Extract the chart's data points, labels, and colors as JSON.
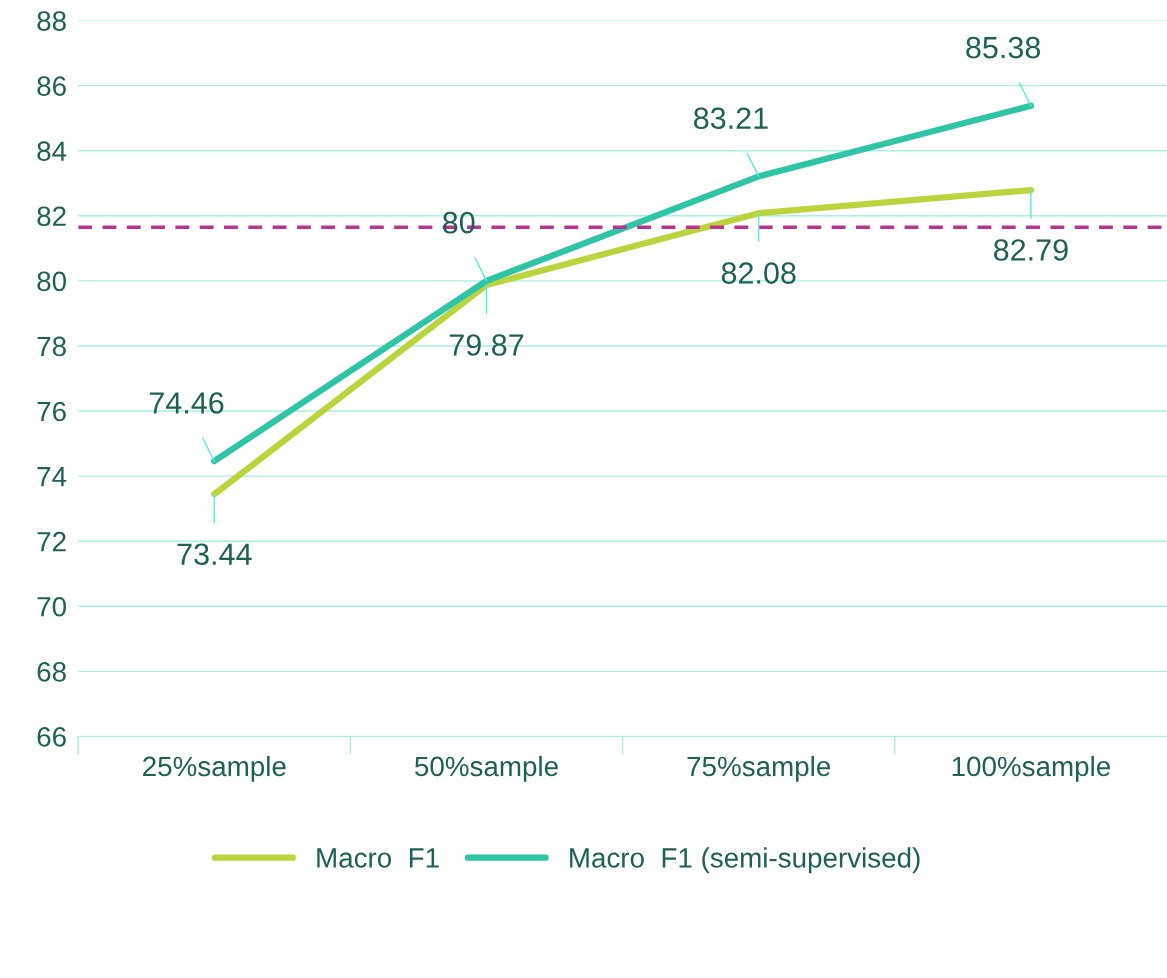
{
  "chart_data": {
    "type": "line",
    "categories": [
      "25%sample",
      "50%sample",
      "75%sample",
      "100%sample"
    ],
    "series": [
      {
        "name": "Macro  F1",
        "color": "#bcd43c",
        "values": [
          73.44,
          79.87,
          82.08,
          82.79
        ]
      },
      {
        "name": "Macro  F1 (semi-supervised)",
        "color": "#2ec4a6",
        "values": [
          74.46,
          80,
          83.21,
          85.38
        ]
      }
    ],
    "ref_lines": [
      {
        "axis": "y",
        "value": 81.65,
        "color": "#b8348f",
        "line_style": "dashed"
      }
    ],
    "ylim": [
      66,
      88
    ],
    "yticks": [
      66,
      68,
      70,
      72,
      74,
      76,
      78,
      80,
      82,
      84,
      86,
      88
    ],
    "grid": "y",
    "legend": "bottom",
    "data_labels": true,
    "marker": "none",
    "line_style": "solid"
  }
}
